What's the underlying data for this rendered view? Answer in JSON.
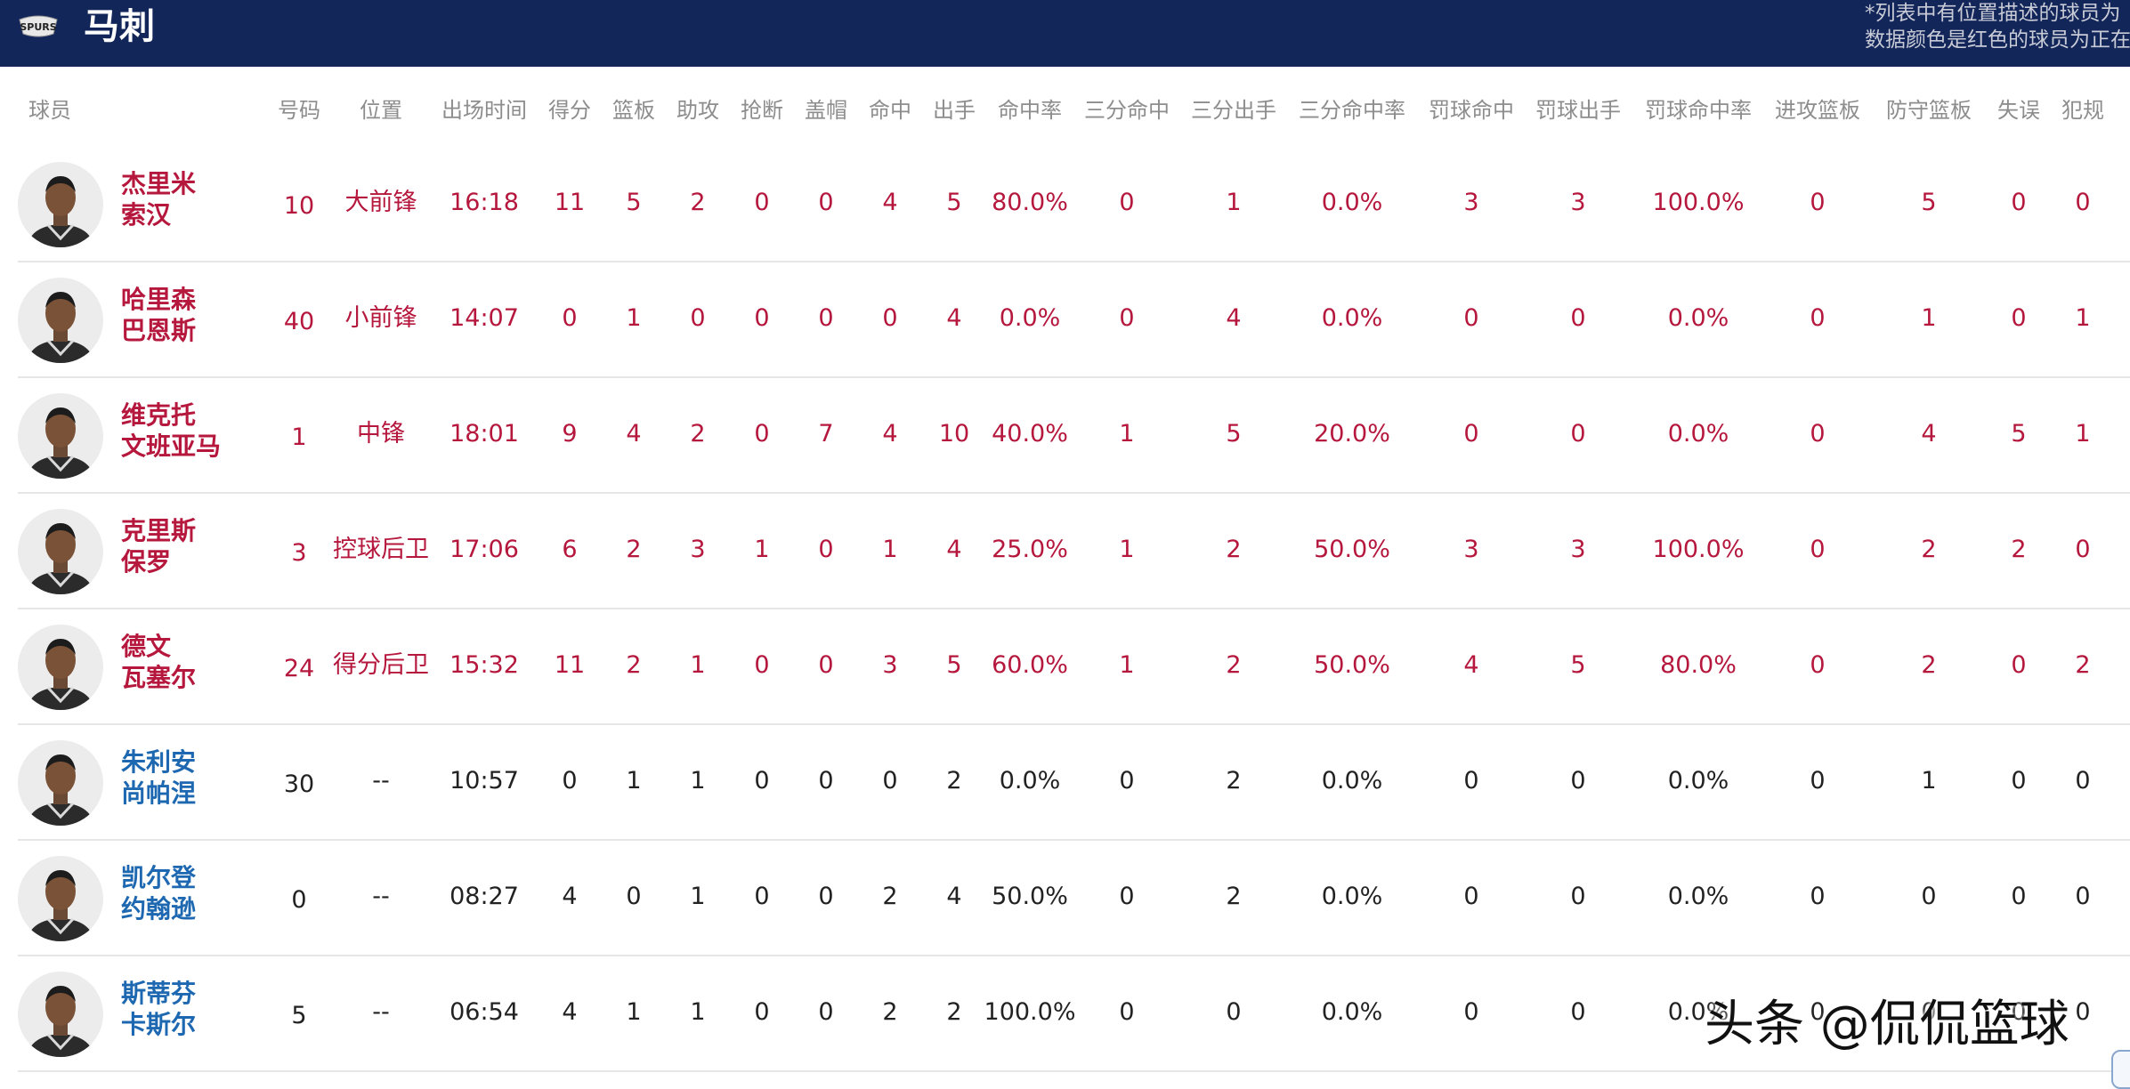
{
  "header": {
    "team_name": "马刺",
    "logo_text": "SPURS",
    "note_line1": "*列表中有位置描述的球员为",
    "note_line2": "数据颜色是红色的球员为正在"
  },
  "columns": [
    "球员",
    "号码",
    "位置",
    "出场时间",
    "得分",
    "篮板",
    "助攻",
    "抢断",
    "盖帽",
    "命中",
    "出手",
    "命中率",
    "三分命中",
    "三分出手",
    "三分命中率",
    "罚球命中",
    "罚球出手",
    "罚球命中率",
    "进攻篮板",
    "防守篮板",
    "失误",
    "犯规"
  ],
  "players": [
    {
      "name1": "杰里米",
      "name2": "索汉",
      "on_court": true,
      "stats": [
        "10",
        "大前锋",
        "16:18",
        "11",
        "5",
        "2",
        "0",
        "0",
        "4",
        "5",
        "80.0%",
        "0",
        "1",
        "0.0%",
        "3",
        "3",
        "100.0%",
        "0",
        "5",
        "0",
        "0"
      ]
    },
    {
      "name1": "哈里森",
      "name2": "巴恩斯",
      "on_court": true,
      "stats": [
        "40",
        "小前锋",
        "14:07",
        "0",
        "1",
        "0",
        "0",
        "0",
        "0",
        "4",
        "0.0%",
        "0",
        "4",
        "0.0%",
        "0",
        "0",
        "0.0%",
        "0",
        "1",
        "0",
        "1"
      ]
    },
    {
      "name1": "维克托",
      "name2": "文班亚马",
      "on_court": true,
      "stats": [
        "1",
        "中锋",
        "18:01",
        "9",
        "4",
        "2",
        "0",
        "7",
        "4",
        "10",
        "40.0%",
        "1",
        "5",
        "20.0%",
        "0",
        "0",
        "0.0%",
        "0",
        "4",
        "5",
        "1"
      ]
    },
    {
      "name1": "克里斯",
      "name2": "保罗",
      "on_court": true,
      "stats": [
        "3",
        "控球后卫",
        "17:06",
        "6",
        "2",
        "3",
        "1",
        "0",
        "1",
        "4",
        "25.0%",
        "1",
        "2",
        "50.0%",
        "3",
        "3",
        "100.0%",
        "0",
        "2",
        "2",
        "0"
      ]
    },
    {
      "name1": "德文",
      "name2": "瓦塞尔",
      "on_court": true,
      "stats": [
        "24",
        "得分后卫",
        "15:32",
        "11",
        "2",
        "1",
        "0",
        "0",
        "3",
        "5",
        "60.0%",
        "1",
        "2",
        "50.0%",
        "4",
        "5",
        "80.0%",
        "0",
        "2",
        "0",
        "2"
      ]
    },
    {
      "name1": "朱利安",
      "name2": "尚帕涅",
      "on_court": false,
      "stats": [
        "30",
        "--",
        "10:57",
        "0",
        "1",
        "1",
        "0",
        "0",
        "0",
        "2",
        "0.0%",
        "0",
        "2",
        "0.0%",
        "0",
        "0",
        "0.0%",
        "0",
        "1",
        "0",
        "0"
      ]
    },
    {
      "name1": "凯尔登",
      "name2": "约翰逊",
      "on_court": false,
      "stats": [
        "0",
        "--",
        "08:27",
        "4",
        "0",
        "1",
        "0",
        "0",
        "2",
        "4",
        "50.0%",
        "0",
        "2",
        "0.0%",
        "0",
        "0",
        "0.0%",
        "0",
        "0",
        "0",
        "0"
      ]
    },
    {
      "name1": "斯蒂芬",
      "name2": "卡斯尔",
      "on_court": false,
      "stats": [
        "5",
        "--",
        "06:54",
        "4",
        "1",
        "1",
        "0",
        "0",
        "2",
        "2",
        "100.0%",
        "0",
        "0",
        "0.0%",
        "0",
        "0",
        "0.0%",
        "0",
        "0",
        "0",
        "0"
      ]
    }
  ],
  "watermark": "头条 @侃侃篮球",
  "colors": {
    "header_bg": "#13265a",
    "on_court": "#b5173d",
    "bench_name": "#1d68b0",
    "bench_stat": "#222222"
  }
}
